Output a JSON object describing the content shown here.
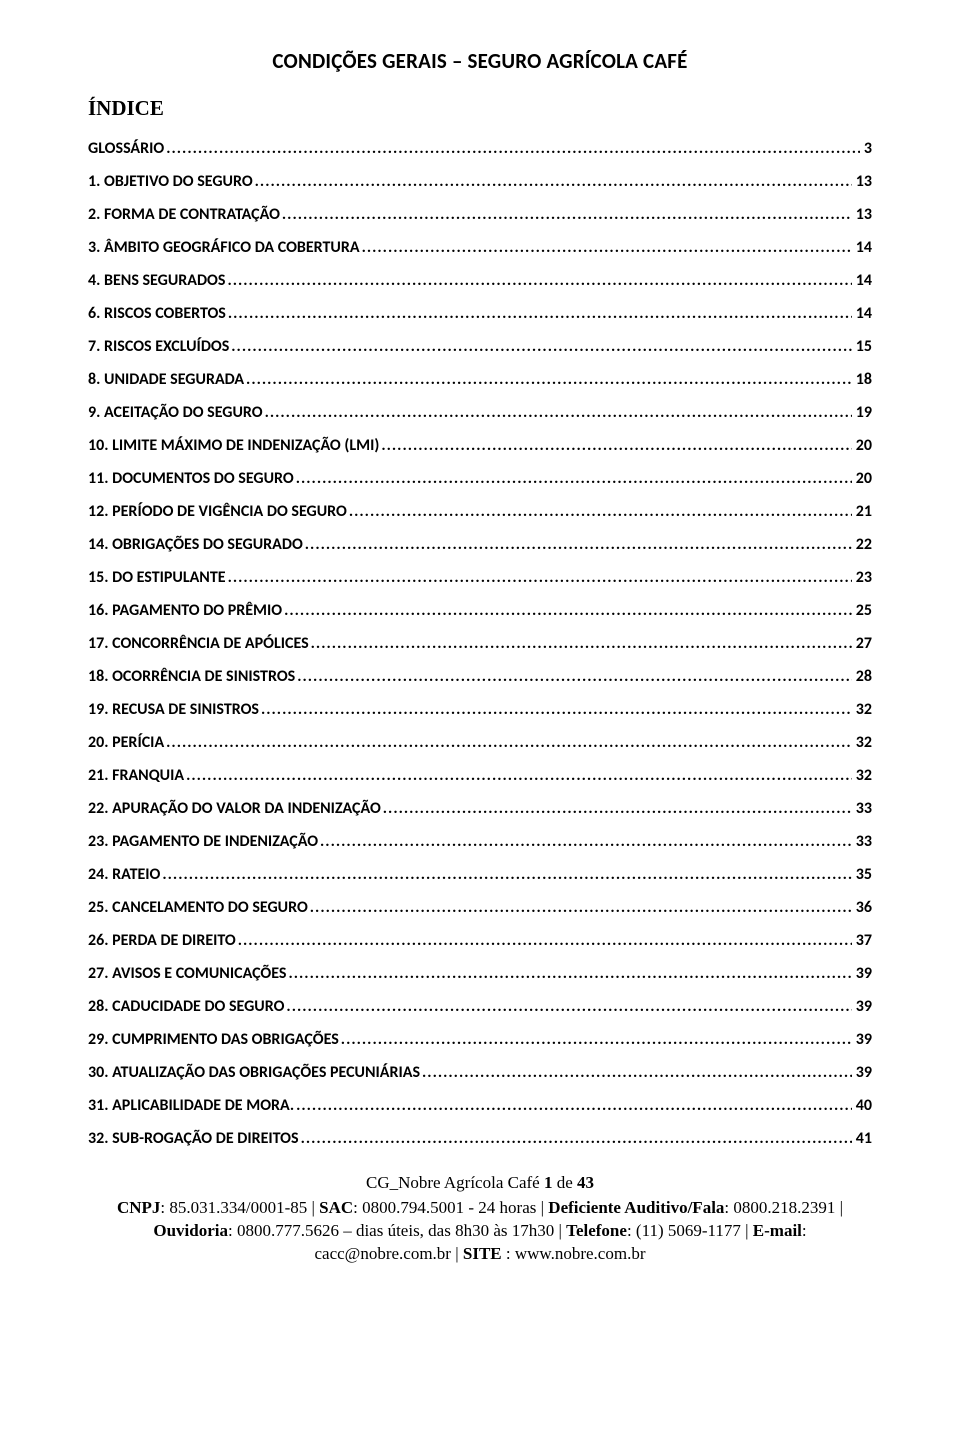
{
  "title": "CONDIÇÕES GERAIS – SEGURO AGRÍCOLA CAFÉ",
  "index_heading": "ÍNDICE",
  "toc": [
    {
      "num": "",
      "label": "GLOSSÁRIO",
      "page": "3"
    },
    {
      "num": "1.",
      "label": "OBJETIVO DO SEGURO",
      "page": "13"
    },
    {
      "num": "2.",
      "label": "FORMA DE CONTRATAÇÃO",
      "page": "13"
    },
    {
      "num": "3.",
      "label": "ÂMBITO GEOGRÁFICO DA COBERTURA",
      "page": "14"
    },
    {
      "num": "4.",
      "label": "BENS SEGURADOS",
      "page": "14"
    },
    {
      "num": "6.",
      "label": "RISCOS COBERTOS",
      "page": "14"
    },
    {
      "num": "7.",
      "label": "RISCOS EXCLUÍDOS",
      "page": "15"
    },
    {
      "num": "8.",
      "label": "UNIDADE SEGURADA",
      "page": "18"
    },
    {
      "num": "9.",
      "label": "ACEITAÇÃO DO SEGURO",
      "page": "19"
    },
    {
      "num": "10.",
      "label": "LIMITE MÁXIMO DE INDENIZAÇÃO (LMI)",
      "page": "20"
    },
    {
      "num": "11.",
      "label": "DOCUMENTOS DO SEGURO",
      "page": "20"
    },
    {
      "num": "12.",
      "label": "PERÍODO DE VIGÊNCIA DO SEGURO",
      "page": "21"
    },
    {
      "num": "14.",
      "label": "OBRIGAÇÕES DO SEGURADO",
      "page": "22"
    },
    {
      "num": "15.",
      "label": "DO ESTIPULANTE",
      "page": "23"
    },
    {
      "num": "16.",
      "label": "PAGAMENTO DO PRÊMIO",
      "page": "25"
    },
    {
      "num": "17.",
      "label": "CONCORRÊNCIA DE APÓLICES",
      "page": "27"
    },
    {
      "num": "18.",
      "label": "OCORRÊNCIA DE SINISTROS",
      "page": "28"
    },
    {
      "num": "19.",
      "label": "RECUSA DE SINISTROS",
      "page": "32"
    },
    {
      "num": "20.",
      "label": "PERÍCIA",
      "page": "32"
    },
    {
      "num": "21.",
      "label": "FRANQUIA",
      "page": "32"
    },
    {
      "num": "22.",
      "label": "APURAÇÃO DO VALOR DA INDENIZAÇÃO",
      "page": "33"
    },
    {
      "num": "23.",
      "label": "PAGAMENTO DE INDENIZAÇÃO",
      "page": "33"
    },
    {
      "num": "24.",
      "label": "RATEIO",
      "page": "35"
    },
    {
      "num": "25.",
      "label": "CANCELAMENTO DO SEGURO",
      "page": "36"
    },
    {
      "num": "26.",
      "label": "PERDA DE DIREITO",
      "page": "37"
    },
    {
      "num": "27.",
      "label": "AVISOS E COMUNICAÇÕES",
      "page": "39"
    },
    {
      "num": "28.",
      "label": "CADUCIDADE DO SEGURO",
      "page": "39"
    },
    {
      "num": "29.",
      "label": "CUMPRIMENTO DAS OBRIGAÇÕES",
      "page": "39"
    },
    {
      "num": "30.",
      "label": "ATUALIZAÇÃO DAS OBRIGAÇÕES PECUNIÁRIAS",
      "page": "39"
    },
    {
      "num": "31.",
      "label": "APLICABILIDADE DE MORA.",
      "page": "40"
    },
    {
      "num": "32.",
      "label": "SUB-ROGAÇÃO DE DIREITOS",
      "page": "41"
    }
  ],
  "footer": {
    "doc_ref_prefix": "CG_Nobre Agrícola Café ",
    "doc_ref_page": "1",
    "doc_ref_middle": " de ",
    "doc_ref_total": "43",
    "cnpj_label": "CNPJ",
    "cnpj_value": ": 85.031.334/0001-85 | ",
    "sac_label": "SAC",
    "sac_value": ": 0800.794.5001 - 24 horas | ",
    "def_label": "Deficiente Auditivo/Fala",
    "def_value": ": 0800.218.2391 | ",
    "ouv_label": "Ouvidoria",
    "ouv_value": ": 0800.777.5626 – dias úteis, das 8h30 às 17h30 | ",
    "tel_label": "Telefone",
    "tel_value": ": (11) 5069-1177 | ",
    "email_label": "E-mail",
    "email_value": ": cacc@nobre.com.br | ",
    "site_label": "SITE ",
    "site_value": ": www.nobre.com.br"
  }
}
